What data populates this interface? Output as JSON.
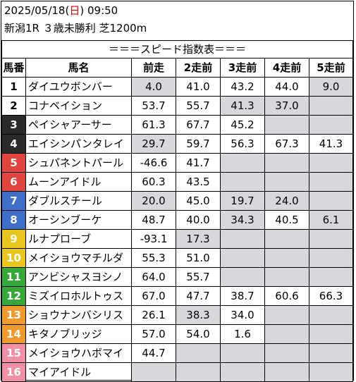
{
  "header": {
    "date": "2025/05/18",
    "dow_open": "(",
    "dow": "日",
    "dow_close": ")",
    "time": "09:50",
    "race": "新潟1R ３歳未勝利 芝1200m"
  },
  "table": {
    "title": "＝＝＝スピード指数表＝＝＝",
    "columns": [
      "馬番",
      "馬名",
      "前走",
      "2走前",
      "3走前",
      "4走前",
      "5走前"
    ],
    "rows": [
      {
        "no": "1",
        "name": "ダイユウボンバー",
        "v": [
          "4.0",
          "41.0",
          "43.2",
          "44.0",
          "9.0"
        ],
        "gray": [
          true,
          false,
          false,
          false,
          true
        ],
        "badge": "white"
      },
      {
        "no": "2",
        "name": "コナベイション",
        "v": [
          "53.7",
          "55.7",
          "41.3",
          "37.0",
          ""
        ],
        "gray": [
          false,
          false,
          true,
          true,
          true
        ],
        "badge": "white"
      },
      {
        "no": "3",
        "name": "ペイシャアーサー",
        "v": [
          "61.3",
          "67.7",
          "45.2",
          "",
          ""
        ],
        "gray": [
          false,
          false,
          false,
          true,
          true
        ],
        "badge": "black"
      },
      {
        "no": "4",
        "name": "エイシンパンタレイ",
        "v": [
          "29.7",
          "59.7",
          "56.3",
          "67.3",
          "41.3"
        ],
        "gray": [
          true,
          false,
          false,
          false,
          false
        ],
        "badge": "black"
      },
      {
        "no": "5",
        "name": "シュパネントパール",
        "v": [
          "-46.6",
          "41.7",
          "",
          "",
          ""
        ],
        "gray": [
          false,
          false,
          true,
          true,
          true
        ],
        "badge": "red"
      },
      {
        "no": "6",
        "name": "ムーンアイドル",
        "v": [
          "60.3",
          "43.5",
          "",
          "",
          ""
        ],
        "gray": [
          false,
          false,
          true,
          true,
          true
        ],
        "badge": "red"
      },
      {
        "no": "7",
        "name": "ダブルスチール",
        "v": [
          "20.0",
          "45.0",
          "19.7",
          "24.0",
          ""
        ],
        "gray": [
          true,
          false,
          true,
          true,
          true
        ],
        "badge": "blue"
      },
      {
        "no": "8",
        "name": "オーシンブーケ",
        "v": [
          "48.7",
          "40.0",
          "34.3",
          "40.5",
          "6.1"
        ],
        "gray": [
          false,
          false,
          true,
          false,
          true
        ],
        "badge": "blue"
      },
      {
        "no": "9",
        "name": "ルナプローブ",
        "v": [
          "-93.1",
          "17.3",
          "",
          "",
          ""
        ],
        "gray": [
          false,
          true,
          true,
          true,
          true
        ],
        "badge": "yellow"
      },
      {
        "no": "10",
        "name": "メイショウマチルダ",
        "v": [
          "55.3",
          "51.0",
          "",
          "",
          ""
        ],
        "gray": [
          false,
          false,
          true,
          true,
          true
        ],
        "badge": "yellow"
      },
      {
        "no": "11",
        "name": "アンビシャスヨシノ",
        "v": [
          "64.0",
          "55.7",
          "",
          "",
          ""
        ],
        "gray": [
          false,
          false,
          true,
          true,
          true
        ],
        "badge": "green"
      },
      {
        "no": "12",
        "name": "ミズイロホルトゥス",
        "v": [
          "67.0",
          "47.7",
          "38.7",
          "60.6",
          "66.3"
        ],
        "gray": [
          false,
          false,
          false,
          false,
          false
        ],
        "badge": "green"
      },
      {
        "no": "13",
        "name": "ショウナンバシリス",
        "v": [
          "26.1",
          "38.3",
          "34.0",
          "",
          ""
        ],
        "gray": [
          false,
          true,
          false,
          true,
          true
        ],
        "badge": "orange"
      },
      {
        "no": "14",
        "name": "キタノブリッジ",
        "v": [
          "57.0",
          "54.0",
          "1.6",
          "",
          ""
        ],
        "gray": [
          false,
          false,
          false,
          true,
          true
        ],
        "badge": "orange"
      },
      {
        "no": "15",
        "name": "メイショウハボマイ",
        "v": [
          "44.7",
          "",
          "",
          "",
          ""
        ],
        "gray": [
          false,
          true,
          true,
          true,
          true
        ],
        "badge": "pink"
      },
      {
        "no": "16",
        "name": "マイアイドル",
        "v": [
          "",
          "",
          "",
          "",
          ""
        ],
        "gray": [
          true,
          true,
          true,
          true,
          true
        ],
        "badge": "pink"
      }
    ]
  },
  "colors": {
    "gray_cell": "#d8d8dc",
    "badge_black": "#2a2a2a",
    "badge_red": "#e0463f",
    "badge_blue": "#3f6fc8",
    "badge_yellow": "#e8c61d",
    "badge_green": "#36a83a",
    "badge_orange": "#ef9a2c",
    "badge_pink": "#f08fa6",
    "sunday": "#e00000"
  }
}
